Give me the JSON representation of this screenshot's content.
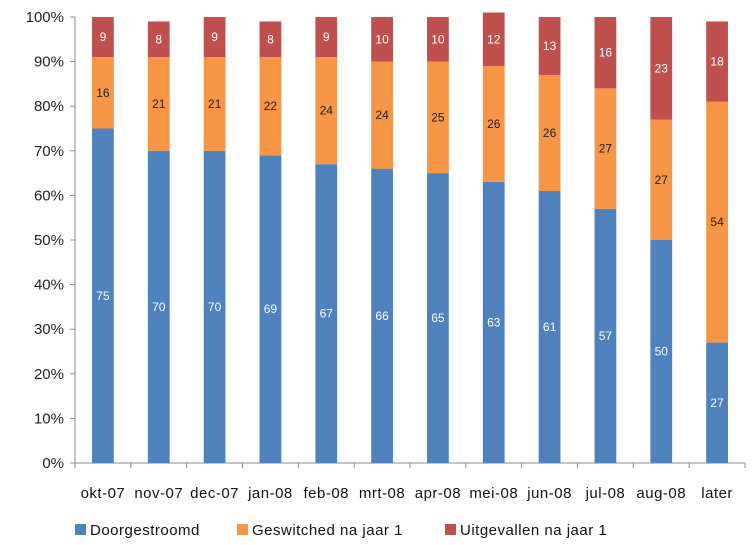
{
  "chart_data": {
    "type": "bar",
    "stacked": true,
    "percent": true,
    "categories": [
      "okt-07",
      "nov-07",
      "dec-07",
      "jan-08",
      "feb-08",
      "mrt-08",
      "apr-08",
      "mei-08",
      "jun-08",
      "jul-08",
      "aug-08",
      "later"
    ],
    "series": [
      {
        "name": "Doorgestroomd",
        "color": "#4F81BD",
        "values": [
          75,
          70,
          70,
          69,
          67,
          66,
          65,
          63,
          61,
          57,
          50,
          27
        ]
      },
      {
        "name": "Geswitched na jaar 1",
        "color": "#F79646",
        "values": [
          16,
          21,
          21,
          22,
          24,
          24,
          25,
          26,
          26,
          27,
          27,
          54
        ]
      },
      {
        "name": "Uitgevallen na jaar 1",
        "color": "#C0504D",
        "values": [
          9,
          8,
          9,
          8,
          9,
          10,
          10,
          12,
          13,
          16,
          23,
          18
        ]
      }
    ],
    "yticks": [
      "0%",
      "10%",
      "20%",
      "30%",
      "40%",
      "50%",
      "60%",
      "70%",
      "80%",
      "90%",
      "100%"
    ],
    "ylim": [
      0,
      100
    ],
    "title": "",
    "xlabel": "",
    "ylabel": "",
    "grid": false,
    "legend_position": "bottom"
  }
}
